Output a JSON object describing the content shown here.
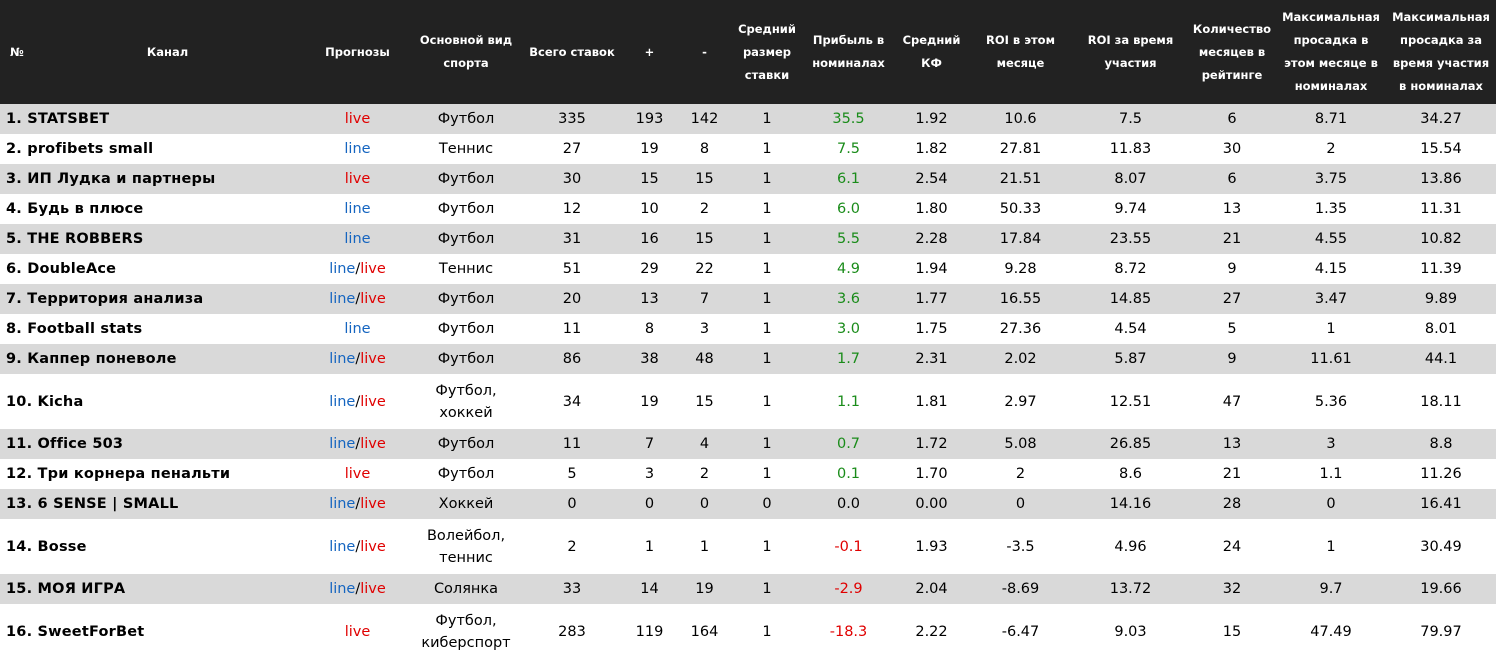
{
  "headers": {
    "num": "№",
    "channel": "Канал",
    "forecasts": "Прогнозы",
    "sport": "Основной вид спорта",
    "total": "Всего ставок",
    "plus": "+",
    "minus": "-",
    "avg_stake": "Средний размер ставки",
    "profit": "Прибыль в номиналах",
    "avg_kf": "Средний КФ",
    "roi_month": "ROI в этом месяце",
    "roi_total": "ROI за время участия",
    "months": "Количество месяцев в рейтинге",
    "dd_month": "Максимальная просадка в этом месяце в номиналах",
    "dd_total": "Максимальная просадка за время участия в номиналах"
  },
  "forecast_words": {
    "line": "line",
    "live": "live",
    "sep": "/"
  },
  "colors": {
    "header_bg": "#222222",
    "stripe": "#d9d9d9",
    "positive": "#1a8c1a",
    "negative": "#e00000",
    "line": "#1565c0",
    "live": "#e00000"
  },
  "rows": [
    {
      "label": "1.  STATSBET",
      "forecast": "live",
      "sport": "Футбол",
      "total": "335",
      "plus": "193",
      "minus": "142",
      "avg": "1",
      "profit": "35.5",
      "kf": "1.92",
      "roi_m": "10.6",
      "roi_t": "7.5",
      "months": "6",
      "dd_m": "8.71",
      "dd_t": "34.27"
    },
    {
      "label": "2.  profibets small",
      "forecast": "line",
      "sport": "Теннис",
      "total": "27",
      "plus": "19",
      "minus": "8",
      "avg": "1",
      "profit": "7.5",
      "kf": "1.82",
      "roi_m": "27.81",
      "roi_t": "11.83",
      "months": "30",
      "dd_m": "2",
      "dd_t": "15.54"
    },
    {
      "label": "3.  ИП Лудка и партнеры",
      "forecast": "live",
      "sport": "Футбол",
      "total": "30",
      "plus": "15",
      "minus": "15",
      "avg": "1",
      "profit": "6.1",
      "kf": "2.54",
      "roi_m": "21.51",
      "roi_t": "8.07",
      "months": "6",
      "dd_m": "3.75",
      "dd_t": "13.86"
    },
    {
      "label": "4.  Будь в плюсе",
      "forecast": "line",
      "sport": "Футбол",
      "total": "12",
      "plus": "10",
      "minus": "2",
      "avg": "1",
      "profit": "6.0",
      "kf": "1.80",
      "roi_m": "50.33",
      "roi_t": "9.74",
      "months": "13",
      "dd_m": "1.35",
      "dd_t": "11.31"
    },
    {
      "label": "5.  THE ROBBERS",
      "forecast": "line",
      "sport": "Футбол",
      "total": "31",
      "plus": "16",
      "minus": "15",
      "avg": "1",
      "profit": "5.5",
      "kf": "2.28",
      "roi_m": "17.84",
      "roi_t": "23.55",
      "months": "21",
      "dd_m": "4.55",
      "dd_t": "10.82"
    },
    {
      "label": "6.  DoubleAce",
      "forecast": "line/live",
      "sport": "Теннис",
      "total": "51",
      "plus": "29",
      "minus": "22",
      "avg": "1",
      "profit": "4.9",
      "kf": "1.94",
      "roi_m": "9.28",
      "roi_t": "8.72",
      "months": "9",
      "dd_m": "4.15",
      "dd_t": "11.39"
    },
    {
      "label": "7.  Территория анализа",
      "forecast": "line/live",
      "sport": "Футбол",
      "total": "20",
      "plus": "13",
      "minus": "7",
      "avg": "1",
      "profit": "3.6",
      "kf": "1.77",
      "roi_m": "16.55",
      "roi_t": "14.85",
      "months": "27",
      "dd_m": "3.47",
      "dd_t": "9.89"
    },
    {
      "label": "8.  Football stats",
      "forecast": "line",
      "sport": "Футбол",
      "total": "11",
      "plus": "8",
      "minus": "3",
      "avg": "1",
      "profit": "3.0",
      "kf": "1.75",
      "roi_m": "27.36",
      "roi_t": "4.54",
      "months": "5",
      "dd_m": "1",
      "dd_t": "8.01"
    },
    {
      "label": "9.  Каппер поневоле",
      "forecast": "line/live",
      "sport": "Футбол",
      "total": "86",
      "plus": "38",
      "minus": "48",
      "avg": "1",
      "profit": "1.7",
      "kf": "2.31",
      "roi_m": "2.02",
      "roi_t": "5.87",
      "months": "9",
      "dd_m": "11.61",
      "dd_t": "44.1"
    },
    {
      "label": "10. Kicha",
      "forecast": "line/live",
      "sport": "Футбол, хоккей",
      "total": "34",
      "plus": "19",
      "minus": "15",
      "avg": "1",
      "profit": "1.1",
      "kf": "1.81",
      "roi_m": "2.97",
      "roi_t": "12.51",
      "months": "47",
      "dd_m": "5.36",
      "dd_t": "18.11",
      "tall": true
    },
    {
      "label": "11. Office 503",
      "forecast": "line/live",
      "sport": "Футбол",
      "total": "11",
      "plus": "7",
      "minus": "4",
      "avg": "1",
      "profit": "0.7",
      "kf": "1.72",
      "roi_m": "5.08",
      "roi_t": "26.85",
      "months": "13",
      "dd_m": "3",
      "dd_t": "8.8"
    },
    {
      "label": "12. Три корнера пенальти",
      "forecast": "live",
      "sport": "Футбол",
      "total": "5",
      "plus": "3",
      "minus": "2",
      "avg": "1",
      "profit": "0.1",
      "kf": "1.70",
      "roi_m": "2",
      "roi_t": "8.6",
      "months": "21",
      "dd_m": "1.1",
      "dd_t": "11.26"
    },
    {
      "label": "13. 6 SENSE | SMALL",
      "forecast": "line/live",
      "sport": "Хоккей",
      "total": "0",
      "plus": "0",
      "minus": "0",
      "avg": "0",
      "profit": "0.0",
      "kf": "0.00",
      "roi_m": "0",
      "roi_t": "14.16",
      "months": "28",
      "dd_m": "0",
      "dd_t": "16.41"
    },
    {
      "label": "14. Bosse",
      "forecast": "line/live",
      "sport": "Волейбол, теннис",
      "total": "2",
      "plus": "1",
      "minus": "1",
      "avg": "1",
      "profit": "-0.1",
      "kf": "1.93",
      "roi_m": "-3.5",
      "roi_t": "4.96",
      "months": "24",
      "dd_m": "1",
      "dd_t": "30.49",
      "tall": true
    },
    {
      "label": "15. МОЯ ИГРА",
      "forecast": "line/live",
      "sport": "Солянка",
      "total": "33",
      "plus": "14",
      "minus": "19",
      "avg": "1",
      "profit": "-2.9",
      "kf": "2.04",
      "roi_m": "-8.69",
      "roi_t": "13.72",
      "months": "32",
      "dd_m": "9.7",
      "dd_t": "19.66"
    },
    {
      "label": "16. SweetForBet",
      "forecast": "live",
      "sport": "Футбол, киберспорт",
      "total": "283",
      "plus": "119",
      "minus": "164",
      "avg": "1",
      "profit": "-18.3",
      "kf": "2.22",
      "roi_m": "-6.47",
      "roi_t": "9.03",
      "months": "15",
      "dd_m": "47.49",
      "dd_t": "79.97",
      "tall": true
    }
  ]
}
